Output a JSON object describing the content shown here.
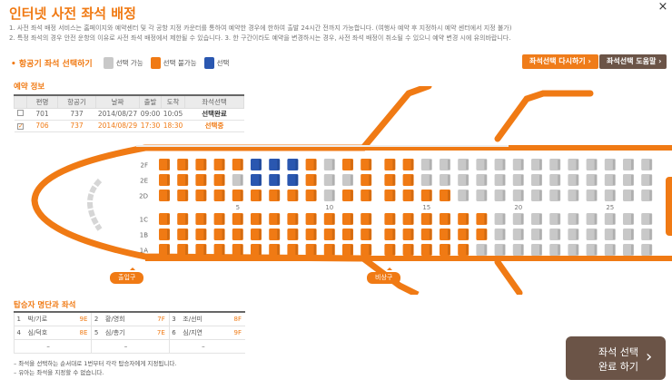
{
  "page": {
    "title": "인터넷 사전 좌석 배정",
    "notices": [
      "1. 사전 좌석 배정 서비스는 홈페이지와 예약센터 및 각 공항 지정 카운터를 통하여 예약한 경우에 한하여 출발 24시간 전까지 가능합니다. (여행사 예약 후 지정하시 예약 센터에서 지정 불가)",
      "2. 특정 좌석의 경우 안전 운항의 이유로 사전 좌석 배정에서 제한될 수 있습니다.  3. 한 구간이라도 예약을 변경하시는 경우, 사전 좌석 배정이 취소될 수 있으니 예약 변경 시에 유의바랍니다."
    ],
    "close_icon": "×"
  },
  "legend": {
    "title": "• 항공기 좌석 선택하기",
    "items": [
      {
        "label": "선택 가능",
        "color": "#c8c8c8"
      },
      {
        "label": "선택 불가능",
        "color": "#f07a14"
      },
      {
        "label": "선택",
        "color": "#2a57b0"
      }
    ]
  },
  "buttons": {
    "reset": "좌석선택 다시하기 ›",
    "help": "좌석선택 도움말 ›",
    "complete_line1": "좌석 선택",
    "complete_line2": "완료 하기",
    "complete_arrow": "›"
  },
  "reservation": {
    "title": "예약 정보",
    "headers": [
      "",
      "편명",
      "항공기",
      "날짜",
      "출발",
      "도착",
      "좌석선택"
    ],
    "rows": [
      {
        "checked": "",
        "flight": "701",
        "aircraft": "737",
        "date": "2014/08/27",
        "dep": "09:00",
        "arr": "10:05",
        "status": "선택완료",
        "selected": false
      },
      {
        "checked": "✓",
        "flight": "706",
        "aircraft": "737",
        "date": "2014/08/29",
        "dep": "17:30",
        "arr": "18:30",
        "status": "선택중",
        "selected": true
      }
    ]
  },
  "seatmap": {
    "rows_top": [
      "2F",
      "2E",
      "2D"
    ],
    "rows_bottom": [
      "1C",
      "1B",
      "1A"
    ],
    "column_numbers": [
      "5",
      "10",
      "15",
      "20",
      "25"
    ],
    "columns": 27,
    "exit_after_col": 12,
    "colors": {
      "available": "#c8c8c8",
      "unavailable": "#f07a14",
      "selected": "#2a57b0"
    },
    "occupied_top": {
      "2F": [
        1,
        2,
        3,
        4,
        5,
        9,
        11,
        12,
        13,
        14
      ],
      "2E": [
        1,
        2,
        3,
        4,
        9,
        12,
        13,
        14
      ],
      "2D": [
        1,
        2,
        3,
        4,
        5,
        6,
        7,
        8,
        9,
        11,
        12,
        13,
        14,
        15,
        16
      ]
    },
    "selected_top": {
      "2F": [
        6,
        7,
        8
      ],
      "2E": [
        6,
        7,
        8
      ]
    },
    "occupied_bottom": {
      "1C": [
        1,
        2,
        3,
        4,
        5,
        6,
        7,
        8,
        9,
        10,
        11,
        12,
        13,
        14,
        15,
        16,
        17,
        18
      ],
      "1B": [
        1,
        2,
        3,
        4,
        5,
        6,
        7,
        8,
        9,
        10,
        11,
        12,
        13,
        14,
        15,
        16,
        17,
        18
      ],
      "1A": [
        1,
        2,
        3,
        4,
        5,
        6,
        7,
        8,
        9,
        10,
        11,
        12,
        13,
        14,
        15,
        16,
        17
      ]
    },
    "door_left": "출입구",
    "door_right": "비상구"
  },
  "passengers": {
    "title": "탑승자 명단과 좌석",
    "rows": [
      [
        {
          "n": "1",
          "name": "박/기로",
          "seat": "9E"
        },
        {
          "n": "2",
          "name": "황/영희",
          "seat": "7F"
        },
        {
          "n": "3",
          "name": "조/선미",
          "seat": "8F"
        }
      ],
      [
        {
          "n": "4",
          "name": "심/덕호",
          "seat": "8E"
        },
        {
          "n": "5",
          "name": "심/총기",
          "seat": "7E"
        },
        {
          "n": "6",
          "name": "심/지연",
          "seat": "9F"
        }
      ],
      [
        {
          "n": "",
          "name": "–",
          "seat": ""
        },
        {
          "n": "",
          "name": "–",
          "seat": ""
        },
        {
          "n": "",
          "name": "–",
          "seat": ""
        }
      ]
    ],
    "notes": [
      "– 좌석을 선택하는 순서대로 1번부터 각각 탑승자에게 지정됩니다.",
      "– 유아는 좌석을 지정할 수 없습니다."
    ]
  }
}
